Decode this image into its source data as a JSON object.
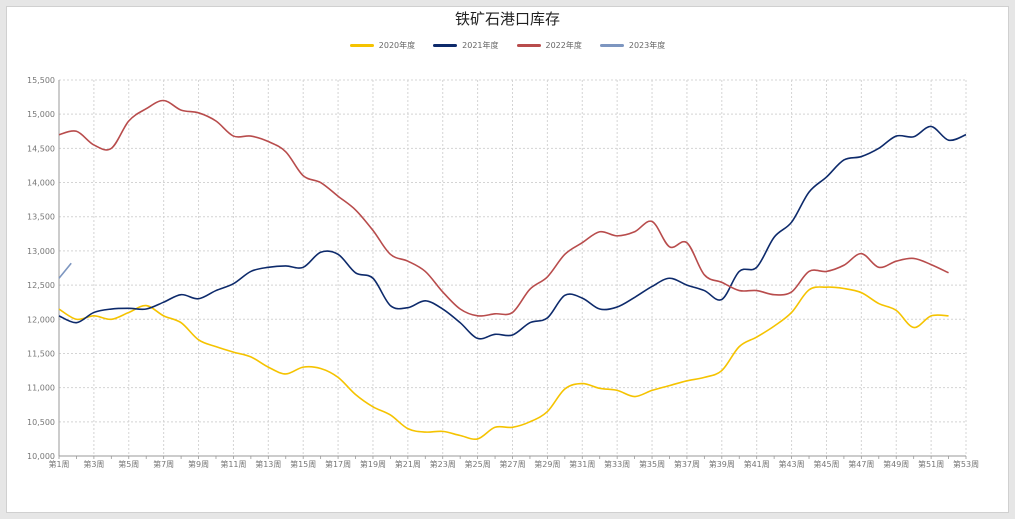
{
  "chart_data": {
    "type": "line",
    "title": "铁矿石港口库存",
    "ylim": [
      10000,
      15500
    ],
    "y_ticks": [
      "10,000",
      "10,500",
      "11,000",
      "11,500",
      "12,000",
      "12,500",
      "13,000",
      "13,500",
      "14,000",
      "14,500",
      "15,000",
      "15,500"
    ],
    "x_tick_labels": [
      "第1周",
      "第3周",
      "第5周",
      "第7周",
      "第9周",
      "第11周",
      "第13周",
      "第15周",
      "第17周",
      "第19周",
      "第21周",
      "第23周",
      "第25周",
      "第27周",
      "第29周",
      "第31周",
      "第33周",
      "第35周",
      "第37周",
      "第39周",
      "第41周",
      "第43周",
      "第45周",
      "第47周",
      "第49周",
      "第51周",
      "第53周"
    ],
    "grid": true,
    "legend_position": "top-center",
    "series": [
      {
        "name": "2020年度",
        "color": "#f5c300",
        "x": [
          1,
          2,
          3,
          4,
          5,
          6,
          7,
          8,
          9,
          10,
          11,
          12,
          13,
          14,
          15,
          16,
          17,
          18,
          19,
          20,
          21,
          22,
          23,
          24,
          25,
          26,
          27,
          28,
          29,
          30,
          31,
          32,
          33,
          34,
          35,
          36,
          37,
          38,
          39,
          40,
          41,
          42,
          43,
          44,
          45,
          46,
          47,
          48,
          49,
          50,
          51,
          52
        ],
        "values": [
          12150,
          12000,
          12050,
          12000,
          12100,
          12200,
          12050,
          11950,
          11700,
          11600,
          11520,
          11450,
          11300,
          11200,
          11300,
          11280,
          11150,
          10900,
          10720,
          10600,
          10400,
          10350,
          10360,
          10300,
          10250,
          10420,
          10420,
          10500,
          10650,
          10980,
          11060,
          10990,
          10960,
          10870,
          10960,
          11030,
          11100,
          11150,
          11250,
          11600,
          11740,
          11900,
          12100,
          12430,
          12470,
          12450,
          12390,
          12230,
          12130,
          11880,
          12050,
          12050
        ]
      },
      {
        "name": "2021年度",
        "color": "#0d2a6b",
        "x": [
          1,
          2,
          3,
          4,
          5,
          6,
          7,
          8,
          9,
          10,
          11,
          12,
          13,
          14,
          15,
          16,
          17,
          18,
          19,
          20,
          21,
          22,
          23,
          24,
          25,
          26,
          27,
          28,
          29,
          30,
          31,
          32,
          33,
          34,
          35,
          36,
          37,
          38,
          39,
          40,
          41,
          42,
          43,
          44,
          45,
          46,
          47,
          48,
          49,
          50,
          51,
          52,
          53
        ],
        "values": [
          12050,
          11950,
          12100,
          12150,
          12160,
          12150,
          12250,
          12360,
          12300,
          12420,
          12520,
          12700,
          12760,
          12780,
          12760,
          12980,
          12950,
          12680,
          12600,
          12200,
          12170,
          12270,
          12150,
          11950,
          11720,
          11780,
          11770,
          11950,
          12020,
          12350,
          12310,
          12150,
          12180,
          12320,
          12480,
          12600,
          12500,
          12420,
          12290,
          12700,
          12760,
          13200,
          13420,
          13860,
          14080,
          14330,
          14380,
          14500,
          14680,
          14670,
          14820,
          14620,
          14700
        ]
      },
      {
        "name": "2022年度",
        "color": "#b84c4c",
        "x": [
          1,
          2,
          3,
          4,
          5,
          6,
          7,
          8,
          9,
          10,
          11,
          12,
          13,
          14,
          15,
          16,
          17,
          18,
          19,
          20,
          21,
          22,
          23,
          24,
          25,
          26,
          27,
          28,
          29,
          30,
          31,
          32,
          33,
          34,
          35,
          36,
          37,
          38,
          39,
          40,
          41,
          42,
          43,
          44,
          45,
          46,
          47,
          48,
          49,
          50,
          51,
          52
        ],
        "values": [
          14700,
          14750,
          14550,
          14500,
          14900,
          15080,
          15200,
          15060,
          15020,
          14900,
          14680,
          14680,
          14600,
          14450,
          14100,
          14000,
          13800,
          13600,
          13300,
          12950,
          12850,
          12700,
          12400,
          12150,
          12050,
          12080,
          12100,
          12440,
          12620,
          12950,
          13120,
          13280,
          13220,
          13280,
          13430,
          13060,
          13120,
          12650,
          12540,
          12420,
          12420,
          12360,
          12400,
          12700,
          12700,
          12790,
          12960,
          12760,
          12850,
          12890,
          12800,
          12680
        ]
      },
      {
        "name": "2023年度",
        "color": "#7d96c0",
        "x": [
          1,
          1.7
        ],
        "values": [
          12600,
          12820
        ]
      }
    ]
  }
}
